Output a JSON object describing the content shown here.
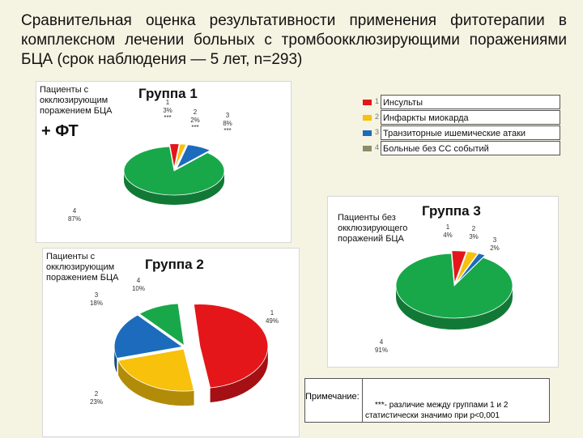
{
  "title": "Сравнительная оценка результативности применения фитотерапии в комплексном лечении больных с тромбоокклюзирующими поражениями БЦА (срок наблюдения — 5 лет, n=293)",
  "colors": {
    "red": "#e4161a",
    "yellow": "#f7c10c",
    "blue": "#1c6bbd",
    "green": "#18a84a"
  },
  "legend": [
    {
      "num": "1",
      "label": "Инсульты",
      "color": "#e4161a"
    },
    {
      "num": "2",
      "label": "Инфаркты миокарда",
      "color": "#f7c10c"
    },
    {
      "num": "3",
      "label": "Транзиторные ишемические атаки",
      "color": "#1c6bbd"
    },
    {
      "num": "4",
      "label": "Больные без СС событий",
      "color": "#8c8c6a"
    }
  ],
  "group1": {
    "desc": "Пациенты с окклюзирующим поражением БЦА",
    "title": "Группа 1",
    "extra": "+ ФТ"
  },
  "group2": {
    "desc": "Пациенты с окклюзирующим поражением БЦА",
    "title": "Группа 2"
  },
  "group3": {
    "desc": "Пациенты без окклюзирующего поражений БЦА",
    "title": "Группа 3"
  },
  "note": {
    "label": "Примечание:",
    "line1": "***-  различие между группами 1 и 2",
    "line2": "статистически  значимо при  р<0,001"
  },
  "chart_data": [
    {
      "type": "pie",
      "title": "Группа 1",
      "categories": [
        "1",
        "2",
        "3",
        "4"
      ],
      "values": [
        3,
        2,
        8,
        87
      ],
      "labels": [
        "3%",
        "2%",
        "8%",
        "87%"
      ],
      "markers": [
        "***",
        "***",
        "***",
        ""
      ]
    },
    {
      "type": "pie",
      "title": "Группа 2",
      "categories": [
        "1",
        "2",
        "3",
        "4"
      ],
      "values": [
        49,
        23,
        18,
        10
      ],
      "labels": [
        "49%",
        "23%",
        "18%",
        "10%"
      ]
    },
    {
      "type": "pie",
      "title": "Группа 3",
      "categories": [
        "1",
        "2",
        "3",
        "4"
      ],
      "values": [
        4,
        3,
        2,
        91
      ],
      "labels": [
        "4%",
        "3%",
        "2%",
        "91%"
      ]
    }
  ]
}
